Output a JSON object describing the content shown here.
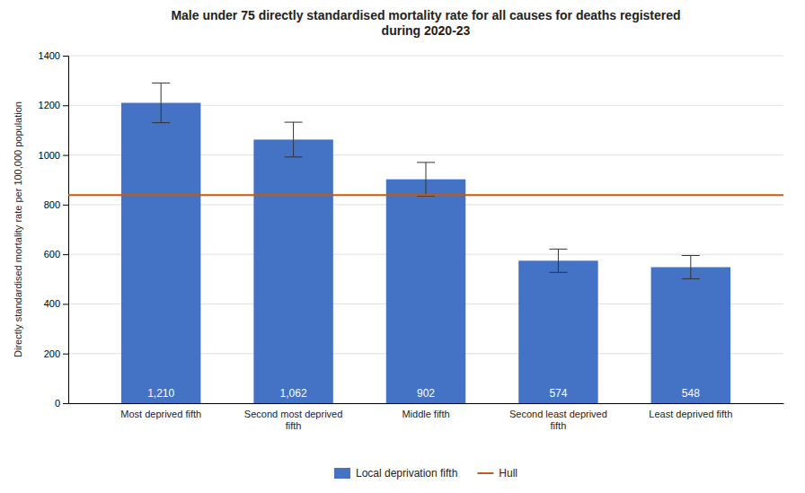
{
  "chart_data": {
    "type": "bar",
    "title": "Male under 75 directly standardised mortality rate for all causes for deaths registered\nduring 2020-23",
    "ylabel": "Directly standardised mortality rate per 100,000 population",
    "categories": [
      "Most deprived fifth",
      "Second most deprived\nfifth",
      "Middle fifth",
      "Second least deprived\nfifth",
      "Least deprived fifth"
    ],
    "series": [
      {
        "name": "Local deprivation fifth",
        "type": "bar",
        "color": "#4472C4",
        "values": [
          1210,
          1062,
          902,
          574,
          548
        ],
        "value_labels": [
          "1,210",
          "1,062",
          "902",
          "574",
          "548"
        ],
        "error_upper": [
          80,
          70,
          68,
          47,
          47
        ],
        "error_lower": [
          80,
          70,
          68,
          47,
          47
        ],
        "data_labels": true
      }
    ],
    "reference_line": {
      "name": "Hull",
      "value": 838,
      "color": "#C55A11"
    },
    "ylim": [
      0,
      1400
    ],
    "yticks": [
      0,
      200,
      400,
      600,
      800,
      1000,
      1200,
      1400
    ],
    "grid": true,
    "legend": "bottom"
  }
}
